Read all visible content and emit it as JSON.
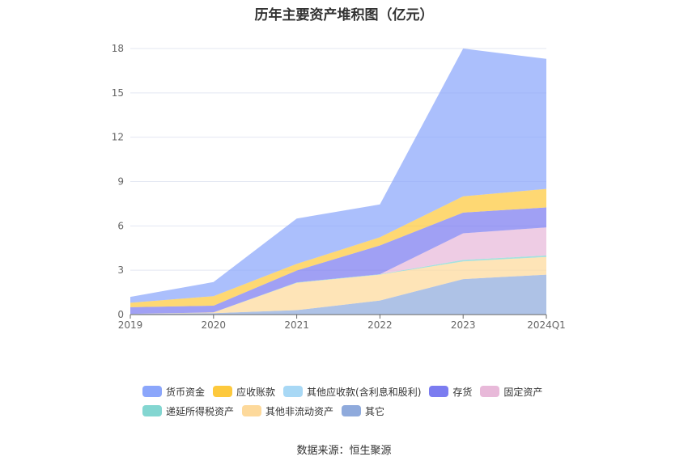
{
  "chart_data": {
    "type": "area",
    "stacked": true,
    "title": "历年主要资产堆积图（亿元）",
    "categories": [
      "2019",
      "2020",
      "2021",
      "2022",
      "2023",
      "2024Q1"
    ],
    "ylim": [
      0,
      18
    ],
    "yticks": [
      0,
      3,
      6,
      9,
      12,
      15,
      18
    ],
    "grid": true,
    "legend_position": "bottom",
    "series": [
      {
        "name": "其它",
        "color": "#8faadc",
        "values": [
          0.05,
          0.1,
          0.3,
          0.95,
          2.4,
          2.7
        ]
      },
      {
        "name": "其他非流动资产",
        "color": "#fdd99b",
        "values": [
          0.0,
          0.05,
          1.85,
          1.75,
          1.2,
          1.2
        ]
      },
      {
        "name": "递延所得税资产",
        "color": "#83d6d1",
        "values": [
          0.0,
          0.0,
          0.03,
          0.03,
          0.1,
          0.1
        ]
      },
      {
        "name": "固定资产",
        "color": "#e8b9d9",
        "values": [
          0.0,
          0.0,
          0.0,
          0.0,
          1.8,
          1.9
        ]
      },
      {
        "name": "存货",
        "color": "#7b7cf0",
        "values": [
          0.45,
          0.45,
          0.8,
          1.95,
          1.4,
          1.35
        ]
      },
      {
        "name": "其他应收款(含利息和股利)",
        "color": "#a8d8f5",
        "values": [
          0.0,
          0.0,
          0.0,
          0.0,
          0.0,
          0.0
        ]
      },
      {
        "name": "应收账款",
        "color": "#fdc93d",
        "values": [
          0.3,
          0.65,
          0.45,
          0.55,
          1.1,
          1.25
        ]
      },
      {
        "name": "货币资金",
        "color": "#8ba6fb",
        "values": [
          0.4,
          0.95,
          3.07,
          2.22,
          10.0,
          8.8
        ]
      }
    ]
  },
  "legend": {
    "row1": [
      {
        "label": "货币资金",
        "color": "#8ba6fb"
      },
      {
        "label": "应收账款",
        "color": "#fdc93d"
      },
      {
        "label": "其他应收款(含利息和股利)",
        "color": "#a8d8f5"
      },
      {
        "label": "存货",
        "color": "#7b7cf0"
      },
      {
        "label": "固定资产",
        "color": "#e8b9d9"
      }
    ],
    "row2": [
      {
        "label": "递延所得税资产",
        "color": "#83d6d1"
      },
      {
        "label": "其他非流动资产",
        "color": "#fdd99b"
      },
      {
        "label": "其它",
        "color": "#8faadc"
      }
    ]
  },
  "source_text": "数据来源：恒生聚源"
}
